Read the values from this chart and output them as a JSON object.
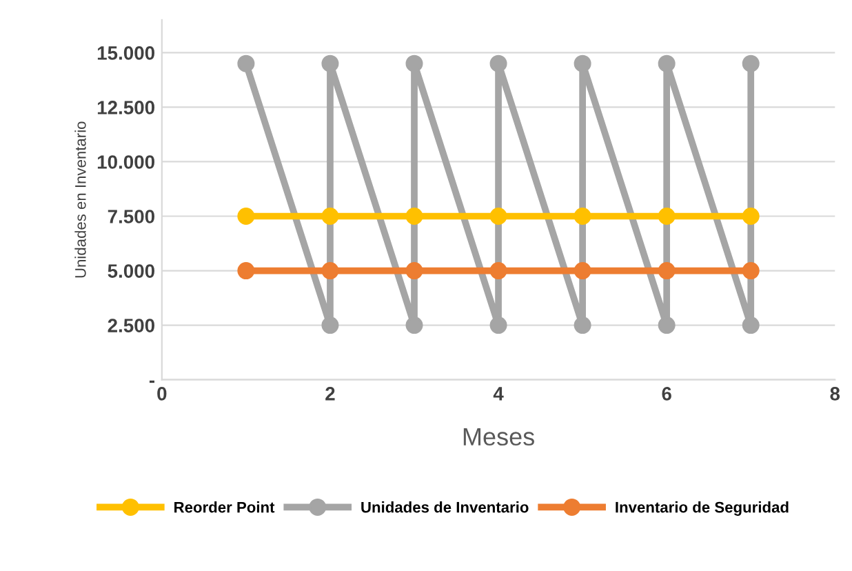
{
  "chart_data": {
    "type": "line",
    "xlabel": "Meses",
    "ylabel": "Unidades en Inventario",
    "series": [
      {
        "name": "Reorder Point",
        "color": "#ffc000",
        "x": [
          1,
          2,
          3,
          4,
          5,
          6,
          7
        ],
        "values": [
          7500,
          7500,
          7500,
          7500,
          7500,
          7500,
          7500
        ]
      },
      {
        "name": "Unidades de Inventario",
        "color": "#a5a5a5",
        "x": [
          1,
          2,
          2,
          3,
          3,
          4,
          4,
          5,
          5,
          6,
          6,
          7,
          7
        ],
        "values": [
          14500,
          2500,
          14500,
          2500,
          14500,
          2500,
          14500,
          2500,
          14500,
          2500,
          14500,
          2500,
          14500
        ]
      },
      {
        "name": "Inventario de Seguridad",
        "color": "#ed7d31",
        "x": [
          1,
          2,
          3,
          4,
          5,
          6,
          7
        ],
        "values": [
          5000,
          5000,
          5000,
          5000,
          5000,
          5000,
          5000
        ]
      }
    ],
    "xlim": [
      0,
      8
    ],
    "xticks": [
      0,
      2,
      4,
      6,
      8
    ],
    "ylim": [
      0,
      16500
    ],
    "yticks": [
      {
        "value": 0,
        "label": "-"
      },
      {
        "value": 2500,
        "label": "2.500"
      },
      {
        "value": 5000,
        "label": "5.000"
      },
      {
        "value": 7500,
        "label": "7.500"
      },
      {
        "value": 10000,
        "label": "10.000"
      },
      {
        "value": 12500,
        "label": "12.500"
      },
      {
        "value": 15000,
        "label": "15.000"
      }
    ],
    "grid": "y",
    "legend": "bottom",
    "marker": "circle",
    "line_style": "solid"
  }
}
